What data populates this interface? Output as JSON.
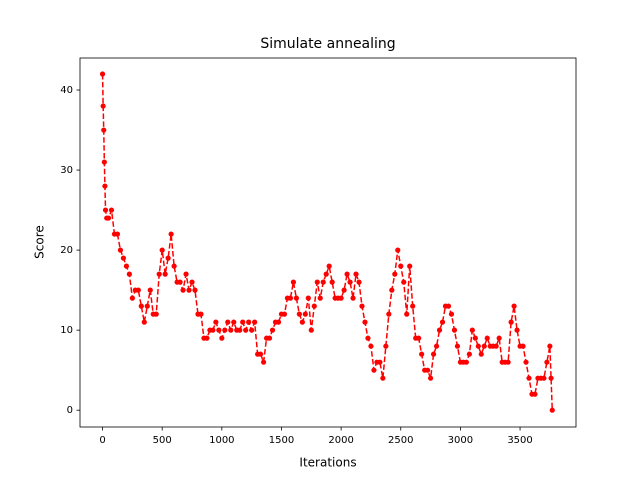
{
  "chart_data": {
    "type": "line",
    "title": "Simulate annealing",
    "x_label": "Iterations",
    "y_label": "Score",
    "color": "#ff0000",
    "x": [
      0,
      5,
      10,
      15,
      20,
      25,
      35,
      50,
      75,
      100,
      125,
      150,
      175,
      200,
      225,
      250,
      275,
      300,
      325,
      350,
      375,
      400,
      425,
      450,
      475,
      500,
      525,
      550,
      575,
      600,
      625,
      650,
      675,
      700,
      725,
      750,
      775,
      800,
      825,
      850,
      875,
      900,
      925,
      950,
      975,
      1000,
      1025,
      1050,
      1075,
      1100,
      1125,
      1150,
      1175,
      1200,
      1225,
      1250,
      1275,
      1300,
      1325,
      1350,
      1375,
      1400,
      1425,
      1450,
      1475,
      1500,
      1525,
      1550,
      1575,
      1600,
      1625,
      1650,
      1675,
      1700,
      1725,
      1750,
      1775,
      1800,
      1825,
      1850,
      1875,
      1900,
      1925,
      1950,
      1975,
      2000,
      2025,
      2050,
      2075,
      2100,
      2125,
      2150,
      2175,
      2200,
      2225,
      2250,
      2275,
      2300,
      2325,
      2350,
      2375,
      2400,
      2425,
      2450,
      2475,
      2500,
      2525,
      2550,
      2575,
      2600,
      2625,
      2650,
      2675,
      2700,
      2725,
      2750,
      2775,
      2800,
      2825,
      2850,
      2875,
      2900,
      2925,
      2950,
      2975,
      3000,
      3025,
      3050,
      3075,
      3100,
      3125,
      3150,
      3175,
      3200,
      3225,
      3250,
      3275,
      3300,
      3325,
      3350,
      3375,
      3400,
      3425,
      3450,
      3475,
      3500,
      3525,
      3550,
      3575,
      3600,
      3625,
      3650,
      3675,
      3700,
      3725,
      3750,
      3760,
      3770
    ],
    "values": [
      42,
      38,
      35,
      31,
      28,
      25,
      24,
      24,
      25,
      22,
      22,
      20,
      19,
      18,
      17,
      14,
      15,
      15,
      13,
      11,
      13,
      15,
      12,
      12,
      17,
      20,
      17,
      19,
      22,
      18,
      16,
      16,
      15,
      17,
      15,
      16,
      15,
      12,
      12,
      9,
      9,
      10,
      10,
      11,
      10,
      9,
      10,
      11,
      10,
      11,
      10,
      10,
      11,
      10,
      11,
      10,
      11,
      7,
      7,
      6,
      9,
      9,
      10,
      11,
      11,
      12,
      12,
      14,
      14,
      16,
      14,
      12,
      11,
      12,
      14,
      10,
      13,
      16,
      14,
      16,
      17,
      18,
      16,
      14,
      14,
      14,
      15,
      17,
      16,
      14,
      17,
      16,
      13,
      11,
      9,
      8,
      5,
      6,
      6,
      4,
      8,
      12,
      15,
      17,
      20,
      18,
      16,
      12,
      18,
      13,
      9,
      9,
      7,
      5,
      5,
      4,
      7,
      8,
      10,
      11,
      13,
      13,
      12,
      10,
      8,
      6,
      6,
      6,
      7,
      10,
      9,
      8,
      7,
      8,
      9,
      8,
      8,
      8,
      9,
      6,
      6,
      6,
      11,
      13,
      10,
      8,
      8,
      6,
      4,
      2,
      2,
      4,
      4,
      4,
      6,
      8,
      4,
      0
    ],
    "xlim": [
      -189,
      3969
    ],
    "ylim": [
      -2.1,
      44
    ],
    "xticks": [
      0,
      500,
      1000,
      1500,
      2000,
      2500,
      3000,
      3500
    ],
    "yticks": [
      0,
      10,
      20,
      30,
      40
    ]
  }
}
